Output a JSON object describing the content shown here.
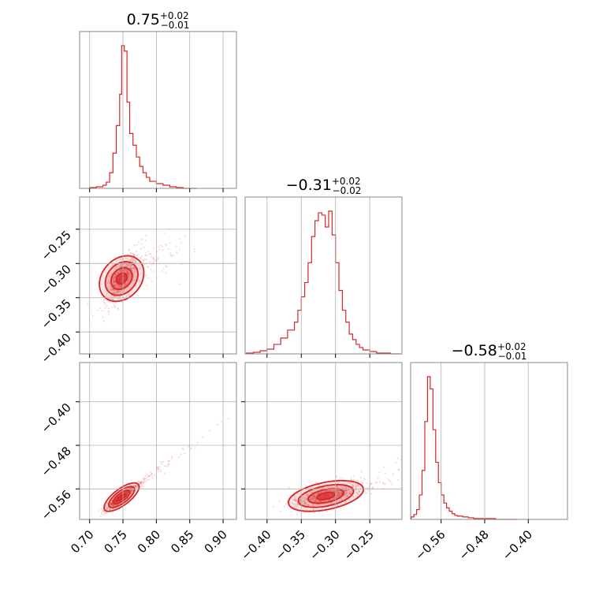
{
  "chart_data": {
    "type": "corner",
    "color": "#d62728",
    "parameters": [
      {
        "index": 0,
        "median": "0.75",
        "plus": "+0.02",
        "minus": "−0.01",
        "range": [
          0.685,
          0.92
        ],
        "ticks": [
          0.7,
          0.75,
          0.8,
          0.85,
          0.9
        ],
        "tick_labels": [
          "0.70",
          "0.75",
          "0.80",
          "0.85",
          "0.90"
        ]
      },
      {
        "index": 1,
        "median": "−0.31",
        "plus": "+0.02",
        "minus": "−0.02",
        "range": [
          -0.432,
          -0.203
        ],
        "ticks": [
          -0.4,
          -0.35,
          -0.3,
          -0.25
        ],
        "tick_labels": [
          "−0.40",
          "−0.35",
          "−0.30",
          "−0.25"
        ]
      },
      {
        "index": 2,
        "median": "−0.58",
        "plus": "+0.02",
        "minus": "−0.01",
        "range": [
          -0.616,
          -0.328
        ],
        "ticks": [
          -0.56,
          -0.48,
          -0.4
        ],
        "tick_labels": [
          "−0.56",
          "−0.48",
          "−0.40"
        ]
      }
    ],
    "histograms": [
      {
        "param": 0,
        "edges": [
          0.7,
          0.71,
          0.72,
          0.725,
          0.73,
          0.735,
          0.74,
          0.745,
          0.748,
          0.752,
          0.756,
          0.76,
          0.765,
          0.77,
          0.775,
          0.78,
          0.785,
          0.79,
          0.8,
          0.81,
          0.82,
          0.83,
          0.84,
          0.86
        ],
        "counts": [
          1,
          2,
          4,
          8,
          20,
          45,
          80,
          120,
          182,
          175,
          110,
          70,
          55,
          40,
          28,
          20,
          14,
          9,
          6,
          4,
          2,
          1,
          0
        ]
      },
      {
        "param": 1,
        "edges": [
          -0.43,
          -0.42,
          -0.41,
          -0.4,
          -0.39,
          -0.38,
          -0.37,
          -0.36,
          -0.355,
          -0.35,
          -0.345,
          -0.34,
          -0.335,
          -0.33,
          -0.325,
          -0.32,
          -0.315,
          -0.31,
          -0.305,
          -0.3,
          -0.295,
          -0.29,
          -0.285,
          -0.28,
          -0.275,
          -0.27,
          -0.265,
          -0.26,
          -0.25,
          -0.24,
          -0.23,
          -0.22,
          -0.205
        ],
        "counts": [
          1,
          2,
          4,
          6,
          12,
          20,
          30,
          40,
          55,
          72,
          90,
          115,
          148,
          168,
          178,
          175,
          160,
          180,
          150,
          115,
          80,
          55,
          40,
          25,
          18,
          12,
          8,
          5,
          3,
          1,
          1,
          0
        ]
      },
      {
        "param": 2,
        "edges": [
          -0.615,
          -0.61,
          -0.605,
          -0.6,
          -0.595,
          -0.59,
          -0.585,
          -0.58,
          -0.575,
          -0.57,
          -0.565,
          -0.56,
          -0.555,
          -0.55,
          -0.545,
          -0.54,
          -0.535,
          -0.53,
          -0.52,
          -0.51,
          -0.5,
          -0.49,
          -0.48,
          -0.46,
          -0.44,
          -0.42
        ],
        "counts": [
          3,
          6,
          12,
          30,
          60,
          120,
          175,
          160,
          110,
          70,
          45,
          30,
          20,
          14,
          10,
          7,
          5,
          4,
          3,
          2,
          1,
          1,
          1,
          0,
          0
        ]
      }
    ],
    "scatter_panels": [
      {
        "x": 0,
        "y": 1,
        "center": [
          0.748,
          -0.322
        ],
        "spread": [
          0.012,
          0.018
        ],
        "corr": 0.72,
        "n": 650,
        "tail": [
          0.05,
          0.035
        ]
      },
      {
        "x": 0,
        "y": 2,
        "center": [
          0.748,
          -0.575
        ],
        "spread": [
          0.012,
          0.012
        ],
        "corr": 0.92,
        "n": 650,
        "tail": [
          0.06,
          0.06
        ]
      },
      {
        "x": 1,
        "y": 2,
        "center": [
          -0.314,
          -0.573
        ],
        "spread": [
          0.026,
          0.012
        ],
        "corr": 0.55,
        "n": 650,
        "tail": [
          0.05,
          0.04
        ]
      }
    ],
    "grid": true
  }
}
